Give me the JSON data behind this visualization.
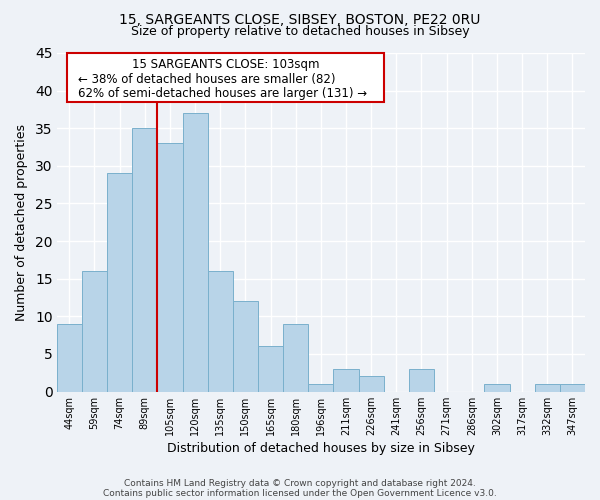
{
  "title1": "15, SARGEANTS CLOSE, SIBSEY, BOSTON, PE22 0RU",
  "title2": "Size of property relative to detached houses in Sibsey",
  "xlabel": "Distribution of detached houses by size in Sibsey",
  "ylabel": "Number of detached properties",
  "bar_labels": [
    "44sqm",
    "59sqm",
    "74sqm",
    "89sqm",
    "105sqm",
    "120sqm",
    "135sqm",
    "150sqm",
    "165sqm",
    "180sqm",
    "196sqm",
    "211sqm",
    "226sqm",
    "241sqm",
    "256sqm",
    "271sqm",
    "286sqm",
    "302sqm",
    "317sqm",
    "332sqm",
    "347sqm"
  ],
  "bar_values": [
    9,
    16,
    29,
    35,
    33,
    37,
    16,
    12,
    6,
    9,
    1,
    3,
    2,
    0,
    3,
    0,
    0,
    1,
    0,
    1,
    1
  ],
  "bar_color": "#b8d4e8",
  "bar_edge_color": "#7ab0cc",
  "vline_color": "#cc0000",
  "ylim": [
    0,
    45
  ],
  "annotation_line1": "15 SARGEANTS CLOSE: 103sqm",
  "annotation_line2": "← 38% of detached houses are smaller (82)",
  "annotation_line3": "62% of semi-detached houses are larger (131) →",
  "footer1": "Contains HM Land Registry data © Crown copyright and database right 2024.",
  "footer2": "Contains public sector information licensed under the Open Government Licence v3.0.",
  "background_color": "#eef2f7",
  "grid_color": "#ffffff",
  "title_fontsize": 10,
  "subtitle_fontsize": 9,
  "axis_label_fontsize": 9,
  "tick_fontsize": 7,
  "annotation_fontsize": 8.5,
  "footer_fontsize": 6.5
}
